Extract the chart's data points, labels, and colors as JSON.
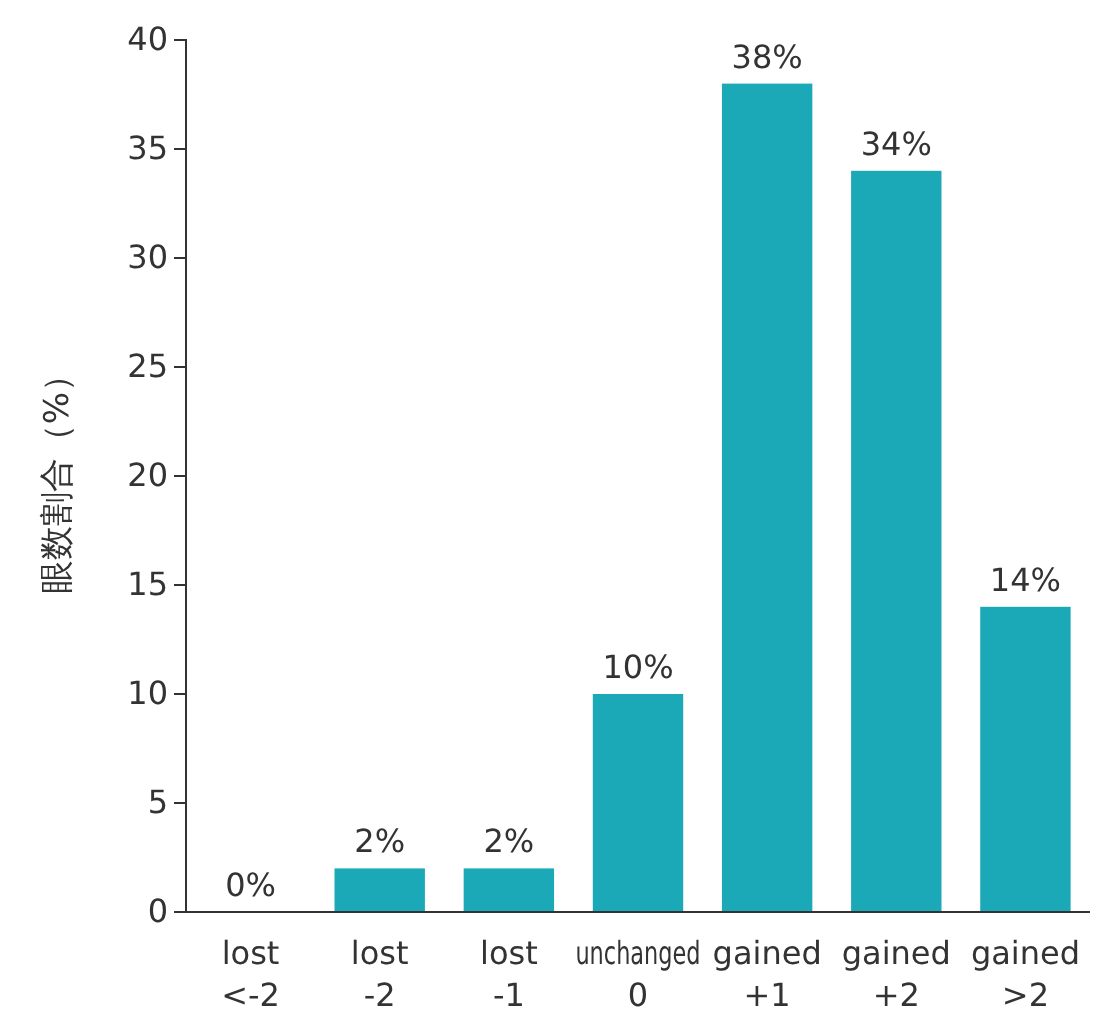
{
  "chart_data": {
    "type": "bar",
    "ylabel": "眼数割合（%）",
    "categories": [
      "lost\n<-2",
      "lost\n-2",
      "lost\n-1",
      "unchanged\n0",
      "gained\n+1",
      "gained\n+2",
      "gained\n>2"
    ],
    "values": [
      0,
      2,
      2,
      10,
      38,
      34,
      14
    ],
    "value_labels": [
      "0%",
      "2%",
      "2%",
      "10%",
      "38%",
      "34%",
      "14%"
    ],
    "color": "#1ba9b8",
    "ylim": [
      0,
      40
    ],
    "yticks": [
      0,
      5,
      10,
      15,
      20,
      25,
      30,
      35,
      40
    ],
    "grid": false
  }
}
